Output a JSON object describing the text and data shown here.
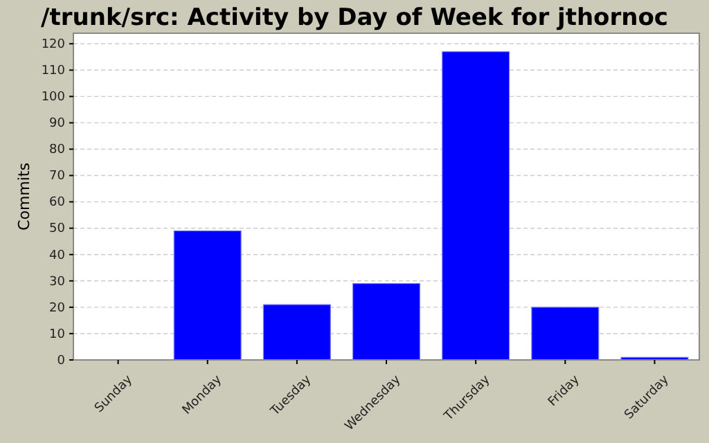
{
  "chart_data": {
    "type": "bar",
    "title": "/trunk/src: Activity by Day of Week for jthornoc",
    "ylabel": "Commits",
    "categories": [
      "Sunday",
      "Monday",
      "Tuesday",
      "Wednesday",
      "Thursday",
      "Friday",
      "Saturday"
    ],
    "values": [
      0,
      49,
      21,
      29,
      117,
      20,
      1
    ],
    "color": "#0000ff",
    "ylim": [
      0,
      124
    ],
    "yticks": [
      0,
      10,
      20,
      30,
      40,
      50,
      60,
      70,
      80,
      90,
      100,
      110,
      120
    ],
    "grid": "y"
  }
}
